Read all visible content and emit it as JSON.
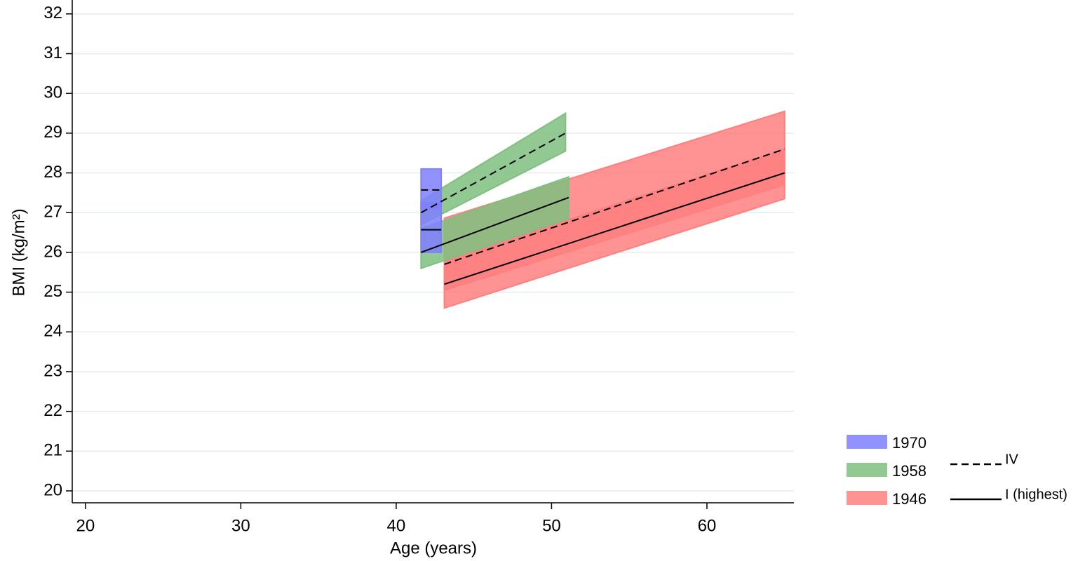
{
  "chart_data": {
    "type": "band-line",
    "x_label": "Age (years)",
    "y_label": "BMI (kg/m²)",
    "xlim": [
      19.15,
      65.6
    ],
    "xticks": [
      20,
      30,
      40,
      50,
      60
    ],
    "ylim": [
      19.7,
      32.35
    ],
    "yticks": [
      20,
      21,
      22,
      23,
      24,
      25,
      26,
      27,
      28,
      29,
      30,
      31,
      32
    ],
    "grid": true,
    "line_color": "#000000",
    "groups": [
      {
        "name": "IV",
        "linestyle": "dashed"
      },
      {
        "name": "I (highest)",
        "linestyle": "solid"
      }
    ],
    "cohorts": [
      {
        "name": "1946",
        "color": "#ff7f7f",
        "series": [
          {
            "linestyle": "solid",
            "x": [
              43.1,
              65.0
            ],
            "lower": [
              24.6,
              27.35
            ],
            "upper": [
              25.8,
              28.6
            ],
            "values": [
              25.2,
              28.0
            ]
          },
          {
            "linestyle": "dashed",
            "x": [
              43.1,
              65.0
            ],
            "lower": [
              25.05,
              27.7
            ],
            "upper": [
              26.86,
              29.55
            ],
            "values": [
              25.7,
              28.6
            ]
          }
        ]
      },
      {
        "name": "1958",
        "color": "#7fbf7f",
        "series": [
          {
            "linestyle": "solid",
            "x": [
              41.6,
              51.1
            ],
            "lower": [
              25.6,
              26.85
            ],
            "upper": [
              26.6,
              27.9
            ],
            "values": [
              26.0,
              27.38
            ]
          },
          {
            "linestyle": "dashed",
            "x": [
              41.6,
              50.9
            ],
            "lower": [
              26.7,
              28.55
            ],
            "upper": [
              27.3,
              29.5
            ],
            "values": [
              27.0,
              29.0
            ]
          }
        ]
      },
      {
        "name": "1970",
        "color": "#7f7fff",
        "series": [
          {
            "linestyle": "solid",
            "x": [
              41.6,
              42.9
            ],
            "lower": [
              26.0,
              26.0
            ],
            "upper": [
              27.25,
              27.25
            ],
            "values": [
              26.57,
              26.57
            ]
          },
          {
            "linestyle": "dashed",
            "x": [
              41.6,
              42.9
            ],
            "lower": [
              27.1,
              27.1
            ],
            "upper": [
              28.1,
              28.1
            ],
            "values": [
              27.57,
              27.57
            ]
          }
        ]
      }
    ]
  }
}
